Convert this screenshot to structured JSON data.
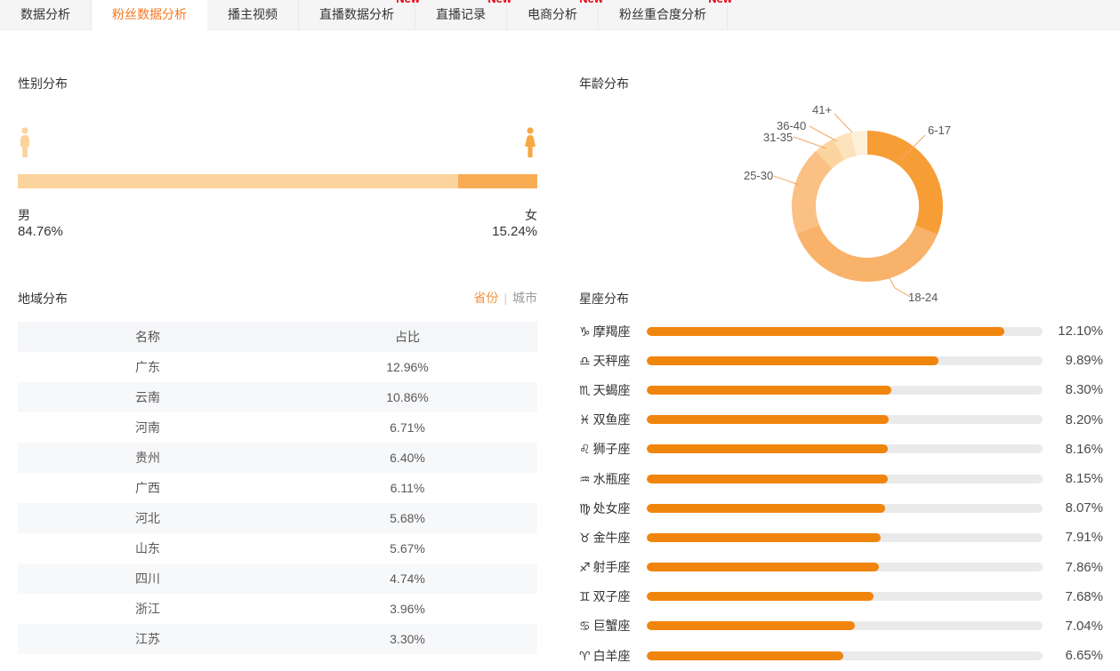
{
  "tab_bar": {
    "tabs": [
      {
        "label": "数据分析",
        "active": false,
        "badge": ""
      },
      {
        "label": "粉丝数据分析",
        "active": true,
        "badge": ""
      },
      {
        "label": "播主视频",
        "active": false,
        "badge": ""
      },
      {
        "label": "直播数据分析",
        "active": false,
        "badge": "New"
      },
      {
        "label": "直播记录",
        "active": false,
        "badge": "New"
      },
      {
        "label": "电商分析",
        "active": false,
        "badge": "New"
      },
      {
        "label": "粉丝重合度分析",
        "active": false,
        "badge": "New"
      }
    ]
  },
  "gender": {
    "title": "性别分布",
    "male_label": "男",
    "male_value": "84.76%",
    "male_pct": 84.76,
    "male_color": "#fbd39c",
    "female_label": "女",
    "female_value": "15.24%",
    "female_pct": 15.24,
    "female_color": "#f8ad55",
    "female_icon_color": "#f7a843"
  },
  "region": {
    "title": "地域分布",
    "toggle": {
      "province": "省份",
      "city": "城市",
      "active": "province"
    },
    "table": {
      "headers": [
        "名称",
        "占比"
      ],
      "rows": [
        [
          "广东",
          "12.96%"
        ],
        [
          "云南",
          "10.86%"
        ],
        [
          "河南",
          "6.71%"
        ],
        [
          "贵州",
          "6.40%"
        ],
        [
          "广西",
          "6.11%"
        ],
        [
          "河北",
          "5.68%"
        ],
        [
          "山东",
          "5.67%"
        ],
        [
          "四川",
          "4.74%"
        ],
        [
          "浙江",
          "3.96%"
        ],
        [
          "江苏",
          "3.30%"
        ]
      ]
    }
  },
  "age": {
    "title": "年龄分布",
    "segments": [
      {
        "label": "6-17",
        "pct": 31,
        "color": "#f79d36"
      },
      {
        "label": "18-24",
        "pct": 38,
        "color": "#f9b269"
      },
      {
        "label": "25-30",
        "pct": 19,
        "color": "#fac084"
      },
      {
        "label": "31-35",
        "pct": 4.5,
        "color": "#fbd4a0"
      },
      {
        "label": "36-40",
        "pct": 4,
        "color": "#fce3bc"
      },
      {
        "label": "41+",
        "pct": 3.5,
        "color": "#fdf0d8"
      }
    ],
    "leader_line_color": "#f2a868"
  },
  "zodiac": {
    "title": "星座分布",
    "bar_color": "#f0850e",
    "track_color": "#eaeaea",
    "scale_max": 13.4,
    "items": [
      {
        "icon": "♑",
        "name": "摩羯座",
        "value": "12.10%",
        "pct": 12.1
      },
      {
        "icon": "♎",
        "name": "天秤座",
        "value": "9.89%",
        "pct": 9.89
      },
      {
        "icon": "♏",
        "name": "天蝎座",
        "value": "8.30%",
        "pct": 8.3
      },
      {
        "icon": "♓",
        "name": "双鱼座",
        "value": "8.20%",
        "pct": 8.2
      },
      {
        "icon": "♌",
        "name": "狮子座",
        "value": "8.16%",
        "pct": 8.16
      },
      {
        "icon": "♒",
        "name": "水瓶座",
        "value": "8.15%",
        "pct": 8.15
      },
      {
        "icon": "♍",
        "name": "处女座",
        "value": "8.07%",
        "pct": 8.07
      },
      {
        "icon": "♉",
        "name": "金牛座",
        "value": "7.91%",
        "pct": 7.91
      },
      {
        "icon": "♐",
        "name": "射手座",
        "value": "7.86%",
        "pct": 7.86
      },
      {
        "icon": "♊",
        "name": "双子座",
        "value": "7.68%",
        "pct": 7.68
      },
      {
        "icon": "♋",
        "name": "巨蟹座",
        "value": "7.04%",
        "pct": 7.04
      },
      {
        "icon": "♈",
        "name": "白羊座",
        "value": "6.65%",
        "pct": 6.65
      }
    ]
  },
  "chart_data": [
    {
      "type": "bar",
      "title": "性别分布",
      "orientation": "stacked-horizontal",
      "categories": [
        "男",
        "女"
      ],
      "values": [
        84.76,
        15.24
      ],
      "unit": "%"
    },
    {
      "type": "table",
      "title": "地域分布 (省份)",
      "columns": [
        "名称",
        "占比"
      ],
      "rows": [
        [
          "广东",
          "12.96%"
        ],
        [
          "云南",
          "10.86%"
        ],
        [
          "河南",
          "6.71%"
        ],
        [
          "贵州",
          "6.40%"
        ],
        [
          "广西",
          "6.11%"
        ],
        [
          "河北",
          "5.68%"
        ],
        [
          "山东",
          "5.67%"
        ],
        [
          "四川",
          "4.74%"
        ],
        [
          "浙江",
          "3.96%"
        ],
        [
          "江苏",
          "3.30%"
        ]
      ]
    },
    {
      "type": "pie",
      "style": "donut",
      "title": "年龄分布",
      "labels": [
        "6-17",
        "18-24",
        "25-30",
        "31-35",
        "36-40",
        "41+"
      ],
      "values": [
        31,
        38,
        19,
        4.5,
        4,
        3.5
      ],
      "value_note": "shares estimated from donut arc angles; no numeric labels shown in image",
      "legend_position": "callout-labels"
    },
    {
      "type": "bar",
      "title": "星座分布",
      "orientation": "horizontal",
      "categories": [
        "摩羯座",
        "天秤座",
        "天蝎座",
        "双鱼座",
        "狮子座",
        "水瓶座",
        "处女座",
        "金牛座",
        "射手座",
        "双子座",
        "巨蟹座",
        "白羊座"
      ],
      "values": [
        12.1,
        9.89,
        8.3,
        8.2,
        8.16,
        8.15,
        8.07,
        7.91,
        7.86,
        7.68,
        7.04,
        6.65
      ],
      "unit": "%",
      "xlim": [
        0,
        13.4
      ],
      "grid": false
    }
  ]
}
